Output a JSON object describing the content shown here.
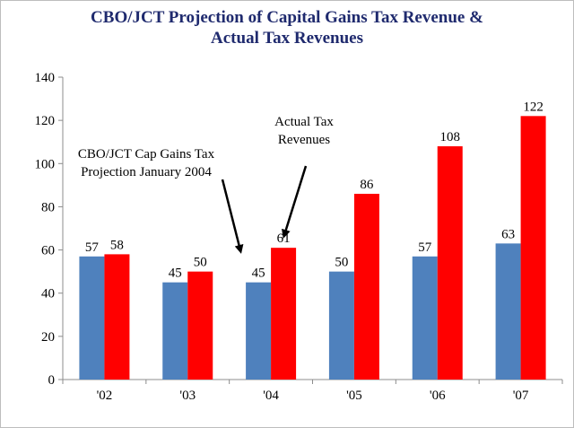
{
  "chart_data": {
    "type": "bar",
    "title_line1": "CBO/JCT Projection of Capital Gains Tax Revenue &",
    "title_line2": "Actual Tax Revenues",
    "categories": [
      "'02",
      "'03",
      "'04",
      "'05",
      "'06",
      "'07"
    ],
    "series": [
      {
        "name": "CBO/JCT Cap Gains Tax Projection January 2004",
        "values": [
          57,
          45,
          45,
          50,
          57,
          63
        ],
        "color": "#4f81bd"
      },
      {
        "name": "Actual Tax Revenues",
        "values": [
          58,
          50,
          61,
          86,
          108,
          122
        ],
        "color": "#ff0000"
      }
    ],
    "ylim": [
      0,
      140
    ],
    "yticks": [
      0,
      20,
      40,
      60,
      80,
      100,
      120,
      140
    ],
    "grid": false,
    "annotations": {
      "projection_line1": "CBO/JCT Cap Gains Tax",
      "projection_line2": "Projection January 2004",
      "actual_line1": "Actual Tax",
      "actual_line2": "Revenues"
    }
  }
}
